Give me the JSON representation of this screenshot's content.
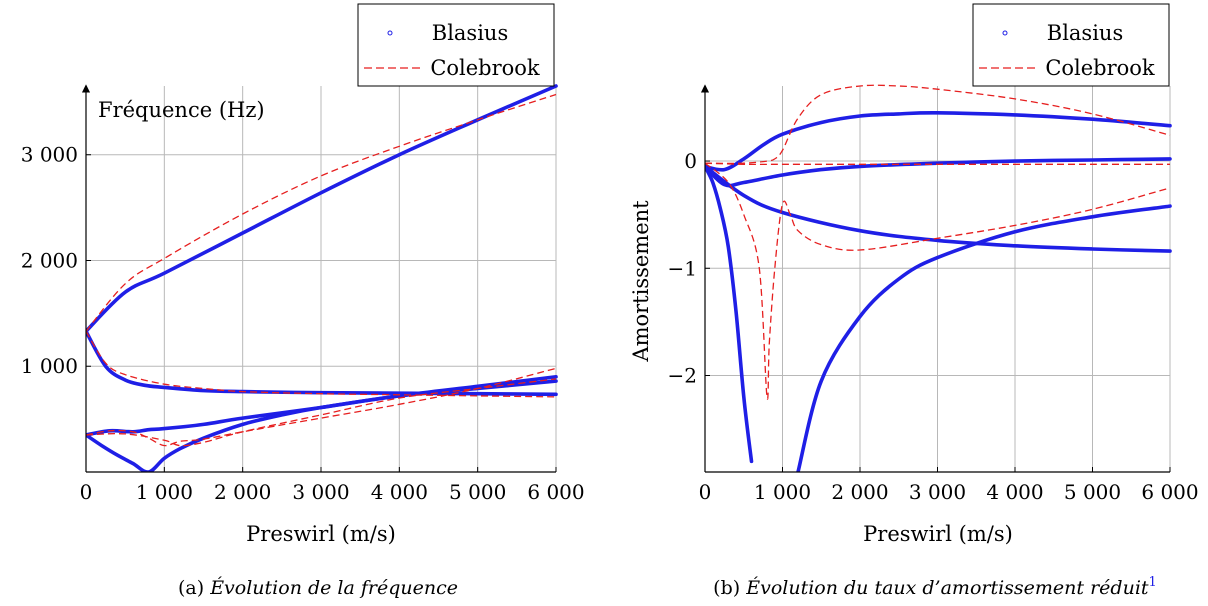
{
  "chart_data": [
    {
      "type": "line",
      "panel": "a",
      "caption_prefix": "(a)",
      "caption": "Évolution de la fréquence",
      "xlabel": "Preswirl (m/s)",
      "ylabel": "Fréquence (Hz)",
      "xlim": [
        0,
        6000
      ],
      "ylim": [
        0,
        3650
      ],
      "x_ticks": [
        0,
        1000,
        2000,
        3000,
        4000,
        5000,
        6000
      ],
      "x_tick_labels": [
        "0",
        "1 000",
        "2 000",
        "3 000",
        "4 000",
        "5 000",
        "6 000"
      ],
      "y_ticks": [
        1000,
        2000,
        3000
      ],
      "y_tick_labels": [
        "1 000",
        "2 000",
        "3 000"
      ],
      "grid": true,
      "legend_position": "top-right",
      "legend": [
        {
          "name": "Blasius",
          "color": "#1f1fe6",
          "style": "dots"
        },
        {
          "name": "Colebrook",
          "color": "#e61f1f",
          "style": "dashed"
        }
      ],
      "series": [
        {
          "name": "Blasius",
          "curves": [
            {
              "x": [
                0,
                500,
                1000,
                2000,
                3000,
                4000,
                5000,
                6000
              ],
              "y": [
                1330,
                1700,
                1880,
                2260,
                2640,
                3000,
                3330,
                3650
              ]
            },
            {
              "x": [
                0,
                250,
                500,
                750,
                1000,
                1500,
                2000,
                3000,
                4000,
                5000,
                6000
              ],
              "y": [
                1330,
                1000,
                870,
                820,
                800,
                770,
                760,
                750,
                745,
                740,
                735
              ]
            },
            {
              "x": [
                0,
                300,
                600,
                800,
                1000,
                1500,
                2000,
                3000,
                4000,
                5000,
                6000
              ],
              "y": [
                350,
                390,
                380,
                400,
                410,
                450,
                510,
                610,
                720,
                790,
                860
              ]
            },
            {
              "x": [
                0,
                200,
                400,
                600,
                800,
                1000,
                1200,
                1500,
                2000,
                2500,
                3000,
                4000,
                5000,
                6000
              ],
              "y": [
                350,
                250,
                160,
                80,
                0,
                130,
                220,
                320,
                450,
                540,
                610,
                720,
                810,
                900
              ]
            }
          ]
        },
        {
          "name": "Colebrook",
          "curves": [
            {
              "x": [
                0,
                500,
                1000,
                2000,
                3000,
                4000,
                5000,
                6000
              ],
              "y": [
                1330,
                1780,
                2020,
                2440,
                2800,
                3080,
                3330,
                3570
              ]
            },
            {
              "x": [
                0,
                250,
                500,
                1000,
                1500,
                2000,
                3000,
                4000,
                5000,
                6000
              ],
              "y": [
                1330,
                1030,
                920,
                830,
                790,
                760,
                740,
                730,
                720,
                710
              ]
            },
            {
              "x": [
                0,
                300,
                600,
                800,
                1000,
                1200,
                1500,
                2000,
                3000,
                4000,
                5000,
                6000
              ],
              "y": [
                350,
                390,
                380,
                320,
                250,
                290,
                310,
                380,
                510,
                640,
                790,
                980
              ]
            },
            {
              "x": [
                0,
                500,
                1000,
                1200,
                1500,
                2000,
                3000,
                4000,
                5000,
                6000
              ],
              "y": [
                350,
                360,
                300,
                250,
                280,
                380,
                540,
                700,
                790,
                880
              ]
            }
          ]
        }
      ]
    },
    {
      "type": "line",
      "panel": "b",
      "caption_prefix": "(b)",
      "caption": "Évolution du taux d’amortissement réduit",
      "caption_footnote": "1",
      "xlabel": "Preswirl (m/s)",
      "ylabel": "Amortissement",
      "xlim": [
        0,
        6000
      ],
      "ylim": [
        -2.9,
        0.7
      ],
      "x_ticks": [
        0,
        1000,
        2000,
        3000,
        4000,
        5000,
        6000
      ],
      "x_tick_labels": [
        "0",
        "1 000",
        "2 000",
        "3 000",
        "4 000",
        "5 000",
        "6 000"
      ],
      "y_ticks": [
        0,
        -1,
        -2
      ],
      "y_tick_labels": [
        "0",
        "−1",
        "−2"
      ],
      "grid": true,
      "legend_position": "top-right",
      "legend": [
        {
          "name": "Blasius",
          "color": "#1f1fe6",
          "style": "dots"
        },
        {
          "name": "Colebrook",
          "color": "#e61f1f",
          "style": "dashed"
        }
      ],
      "series": [
        {
          "name": "Blasius",
          "curves": [
            {
              "x": [
                0,
                250,
                500,
                750,
                1000,
                1500,
                2000,
                2500,
                3000,
                4000,
                5000,
                6000
              ],
              "y": [
                -0.05,
                -0.08,
                0.02,
                0.15,
                0.25,
                0.36,
                0.42,
                0.44,
                0.45,
                0.43,
                0.39,
                0.33
              ]
            },
            {
              "x": [
                0,
                250,
                500,
                1000,
                1500,
                2000,
                3000,
                4000,
                5000,
                6000
              ],
              "y": [
                -0.05,
                -0.22,
                -0.2,
                -0.13,
                -0.08,
                -0.05,
                -0.02,
                0.0,
                0.01,
                0.02
              ]
            },
            {
              "x": [
                0,
                500,
                1000,
                2000,
                3000,
                4000,
                5000,
                6000
              ],
              "y": [
                -0.05,
                -0.32,
                -0.48,
                -0.65,
                -0.74,
                -0.79,
                -0.82,
                -0.84
              ]
            },
            {
              "x": [
                0,
                100,
                200,
                300,
                400,
                500,
                600
              ],
              "y": [
                -0.05,
                -0.2,
                -0.45,
                -0.8,
                -1.4,
                -2.2,
                -2.8
              ]
            },
            {
              "x": [
                1200,
                1500,
                2000,
                2500,
                3000,
                4000,
                5000,
                6000
              ],
              "y": [
                -2.9,
                -2.05,
                -1.45,
                -1.1,
                -0.9,
                -0.66,
                -0.52,
                -0.42
              ]
            }
          ]
        },
        {
          "name": "Colebrook",
          "curves": [
            {
              "x": [
                0,
                500,
                800,
                900,
                1000,
                1200,
                1500,
                2000,
                2500,
                3000,
                4000,
                5000,
                6000
              ],
              "y": [
                -0.02,
                -0.02,
                0.0,
                0.02,
                0.1,
                0.4,
                0.62,
                0.7,
                0.7,
                0.67,
                0.58,
                0.44,
                0.24
              ]
            },
            {
              "x": [
                0,
                500,
                1000,
                2000,
                3000,
                4000,
                5000,
                6000
              ],
              "y": [
                -0.02,
                -0.03,
                -0.03,
                -0.03,
                -0.03,
                -0.03,
                -0.03,
                -0.03
              ]
            },
            {
              "x": [
                0,
                300,
                500,
                700,
                800,
                830,
                900,
                1000,
                1100,
                1200,
                1500,
                2000,
                3000,
                4000,
                5000,
                6000
              ],
              "y": [
                -0.02,
                -0.2,
                -0.5,
                -1.0,
                -2.2,
                -1.7,
                -1.0,
                -0.4,
                -0.5,
                -0.65,
                -0.78,
                -0.83,
                -0.72,
                -0.6,
                -0.45,
                -0.25
              ]
            }
          ]
        }
      ]
    }
  ]
}
